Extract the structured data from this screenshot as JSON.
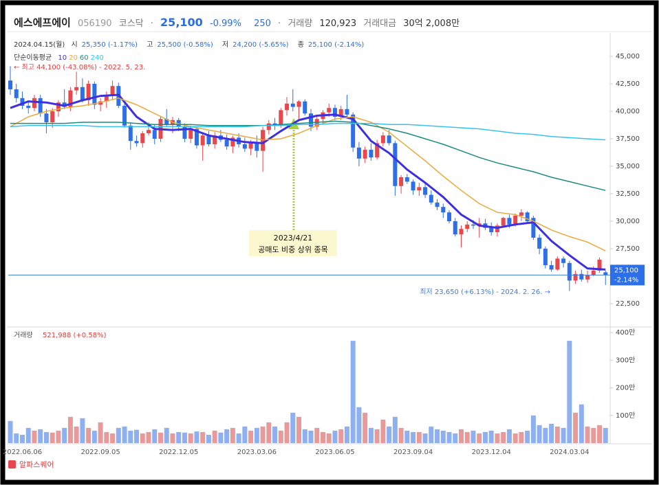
{
  "header": {
    "name": "에스에프에이",
    "code": "056190",
    "market": "코스닥",
    "price": "25,100",
    "change_pct": "-0.99%",
    "change": "250",
    "volume_label": "거래량",
    "volume": "120,923",
    "amount_label": "거래대금",
    "amount": "30억 2,008만"
  },
  "ohlc_info": {
    "date": "2024.04.15(월)",
    "open_label": "시",
    "open": "25,350 (-1.17%)",
    "high_label": "고",
    "high": "25,500 (-0.58%)",
    "low_label": "저",
    "low": "24,200 (-5.65%)",
    "close_label": "종",
    "close": "25,100 (-2.14%)"
  },
  "chart_data": {
    "type": "candlestick",
    "categories": [
      null,
      null,
      "2022.06.06",
      null,
      null,
      null,
      null,
      null,
      null,
      null,
      null,
      null,
      null,
      null,
      null,
      "2022.09.05",
      null,
      null,
      null,
      null,
      null,
      null,
      null,
      null,
      null,
      null,
      null,
      null,
      "2022.12.05",
      null,
      null,
      null,
      null,
      null,
      null,
      null,
      null,
      null,
      null,
      null,
      null,
      "2023.03.06",
      null,
      null,
      null,
      null,
      null,
      null,
      null,
      null,
      null,
      null,
      null,
      null,
      "2023.06.05",
      null,
      null,
      null,
      null,
      null,
      null,
      null,
      null,
      null,
      null,
      null,
      null,
      "2023.09.04",
      null,
      null,
      null,
      null,
      null,
      null,
      null,
      null,
      null,
      null,
      null,
      null,
      "2023.12.04",
      null,
      null,
      null,
      null,
      null,
      null,
      null,
      null,
      null,
      null,
      null,
      null,
      "2024.03.04",
      null,
      null,
      null,
      null,
      null,
      null
    ],
    "open": [
      42800,
      42000,
      41200,
      40500,
      40300,
      41200,
      39800,
      39000,
      40000,
      40800,
      40400,
      41900,
      42200,
      41000,
      42500,
      40600,
      40900,
      41500,
      42300,
      40500,
      38700,
      37300,
      37100,
      38000,
      38300,
      37500,
      39300,
      38800,
      39200,
      38600,
      37500,
      38400,
      36900,
      37800,
      37000,
      37800,
      37400,
      36800,
      37600,
      37000,
      36600,
      37200,
      36400,
      38300,
      38900,
      38700,
      40100,
      40700,
      40400,
      40900,
      39800,
      38600,
      39300,
      39900,
      40300,
      39500,
      40200,
      39700,
      36700,
      35700,
      36500,
      35800,
      37100,
      37800,
      37100,
      33200,
      34000,
      33600,
      32800,
      33100,
      32400,
      31700,
      31300,
      30800,
      30000,
      28800,
      29300,
      29700,
      29600,
      29800,
      29400,
      29000,
      29600,
      30300,
      29700,
      30500,
      30800,
      30300,
      28500,
      27500,
      26000,
      25600,
      26600,
      26200,
      24600,
      25200,
      24700,
      25100,
      25500,
      25350
    ],
    "high": [
      44100,
      42500,
      41800,
      41000,
      41500,
      41500,
      40200,
      40300,
      41000,
      42000,
      42200,
      43600,
      43000,
      42800,
      42700,
      41200,
      41800,
      42800,
      42600,
      40800,
      39000,
      37800,
      38200,
      39000,
      38800,
      39500,
      40200,
      39500,
      39400,
      38900,
      38700,
      38600,
      38100,
      38200,
      38100,
      38300,
      37900,
      37800,
      38000,
      37600,
      37400,
      37800,
      38600,
      39200,
      39400,
      40300,
      41300,
      42000,
      41000,
      41100,
      40200,
      39600,
      40100,
      40700,
      40600,
      40500,
      41500,
      39900,
      37200,
      36800,
      37100,
      37400,
      38100,
      38300,
      37300,
      34200,
      34300,
      33800,
      33500,
      33400,
      32800,
      32000,
      31600,
      31000,
      30300,
      29600,
      30000,
      30100,
      30300,
      30200,
      29900,
      29800,
      30400,
      30600,
      30700,
      31100,
      30900,
      30500,
      28800,
      27700,
      26400,
      26800,
      26800,
      26400,
      25500,
      25600,
      25500,
      25900,
      26700,
      25500
    ],
    "low": [
      41500,
      40800,
      40200,
      39800,
      40000,
      39500,
      38000,
      38500,
      39500,
      40200,
      40000,
      41500,
      40800,
      40500,
      40200,
      40000,
      40300,
      41000,
      40300,
      38500,
      36500,
      36800,
      36700,
      37800,
      37000,
      37200,
      38600,
      38000,
      38200,
      37200,
      37100,
      36600,
      35500,
      36800,
      36600,
      37200,
      36500,
      36200,
      36700,
      36300,
      36000,
      35800,
      34500,
      37900,
      38300,
      38500,
      39600,
      40000,
      39300,
      39600,
      38200,
      38300,
      38900,
      39500,
      39200,
      39200,
      39400,
      36300,
      35000,
      35300,
      35500,
      35600,
      36800,
      36900,
      32300,
      32500,
      33400,
      32400,
      32300,
      32100,
      31500,
      31000,
      30300,
      29800,
      28600,
      27600,
      29000,
      29300,
      28500,
      29200,
      28700,
      28600,
      29400,
      29400,
      29500,
      30000,
      29800,
      28300,
      27000,
      25700,
      25400,
      25500,
      25800,
      23650,
      24300,
      24500,
      24400,
      25000,
      25300,
      24200
    ],
    "close": [
      42000,
      41200,
      40500,
      40300,
      41200,
      39800,
      39000,
      40000,
      40800,
      40400,
      41900,
      42200,
      41000,
      42500,
      40600,
      40900,
      41500,
      42300,
      40500,
      38700,
      37300,
      37100,
      38000,
      38300,
      37500,
      39300,
      38800,
      39200,
      38600,
      37500,
      38400,
      36900,
      37800,
      37000,
      37800,
      37400,
      36800,
      37600,
      37000,
      36600,
      37200,
      36400,
      38300,
      38900,
      38700,
      40100,
      40700,
      40400,
      40900,
      39800,
      38600,
      39300,
      39900,
      40300,
      39500,
      40200,
      39700,
      36700,
      35700,
      36500,
      35800,
      37100,
      37800,
      37100,
      33200,
      34000,
      33600,
      32800,
      33100,
      32400,
      31700,
      31300,
      30800,
      30000,
      28800,
      29300,
      29700,
      29600,
      29800,
      29400,
      29000,
      29600,
      30300,
      29700,
      30500,
      30800,
      30000,
      28500,
      27500,
      26000,
      25600,
      26600,
      26200,
      24600,
      25200,
      24700,
      25100,
      25500,
      26500,
      25100
    ],
    "up_color": "#e8474d",
    "down_color": "#2d6fe8",
    "ylim": [
      20500,
      47000
    ],
    "yticks": [
      {
        "value": 22500,
        "label": "22,500"
      },
      {
        "value": 25000,
        "label": "25,000"
      },
      {
        "value": 27500,
        "label": "27,500"
      },
      {
        "value": 30000,
        "label": "30,000"
      },
      {
        "value": 32500,
        "label": "32,500"
      },
      {
        "value": 35000,
        "label": "35,000"
      },
      {
        "value": 37500,
        "label": "37,500"
      },
      {
        "value": 40000,
        "label": "40,000"
      },
      {
        "value": 42500,
        "label": "42,500"
      },
      {
        "value": 45000,
        "label": "45,000"
      }
    ],
    "ma_label": "단순이동평균",
    "moving_averages": {
      "x": [
        0,
        3,
        6,
        9,
        12,
        15,
        18,
        21,
        24,
        27,
        30,
        33,
        36,
        39,
        42,
        45,
        48,
        51,
        54,
        57,
        60,
        63,
        66,
        69,
        72,
        75,
        78,
        81,
        84,
        87,
        90,
        93,
        96,
        99
      ],
      "series": [
        {
          "name": "10",
          "color": "#3b2fe0",
          "values": [
            40300,
            40900,
            40800,
            40500,
            41000,
            41400,
            41500,
            39500,
            38400,
            38300,
            38400,
            37800,
            37500,
            37200,
            37100,
            38200,
            39200,
            39600,
            39700,
            39300,
            37300,
            36200,
            34700,
            33500,
            32200,
            30600,
            29600,
            29400,
            29700,
            29900,
            28200,
            26900,
            25700,
            25600
          ]
        },
        {
          "name": "20",
          "color": "#e9a93c",
          "values": [
            38600,
            39500,
            40000,
            40300,
            40500,
            40800,
            41200,
            40600,
            39800,
            39000,
            38600,
            38300,
            38000,
            37700,
            37400,
            37500,
            38000,
            38700,
            39300,
            39500,
            39000,
            38100,
            36800,
            35500,
            34100,
            32800,
            31600,
            30800,
            30600,
            30000,
            29200,
            28600,
            28100,
            27300
          ]
        },
        {
          "name": "60",
          "color": "#1a8c7e",
          "values": [
            38900,
            38900,
            38900,
            38900,
            39000,
            39000,
            39000,
            38900,
            38800,
            38800,
            38800,
            38700,
            38700,
            38700,
            38700,
            38800,
            38900,
            39000,
            39100,
            39000,
            38700,
            38400,
            38000,
            37500,
            37000,
            36400,
            35800,
            35300,
            34900,
            34500,
            34000,
            33600,
            33200,
            32800
          ]
        },
        {
          "name": "240",
          "color": "#36c2ee",
          "values": [
            38600,
            38700,
            38700,
            38700,
            38700,
            38600,
            38600,
            38600,
            38600,
            38600,
            38600,
            38600,
            38600,
            38600,
            38700,
            38700,
            38800,
            38800,
            38900,
            38900,
            38900,
            38800,
            38800,
            38700,
            38600,
            38500,
            38400,
            38200,
            38000,
            37900,
            37700,
            37600,
            37500,
            37400
          ]
        }
      ]
    },
    "high_note": "← 최고 44,100 (-43.08%) - 2022. 5. 23.",
    "low_note": "최저 23,650 (+6.13%) - 2024. 2. 26. →",
    "event": {
      "date": "2023/4/21",
      "text": "공매도 비중 상위 종목"
    },
    "last_price": {
      "value": 25100,
      "label": "25,100",
      "change": "-2.14%"
    },
    "volume": {
      "title": "거래량",
      "info": "521,988 (+0.58%)",
      "values": [
        80,
        35,
        30,
        55,
        45,
        50,
        40,
        38,
        45,
        55,
        95,
        60,
        90,
        55,
        45,
        75,
        40,
        35,
        55,
        60,
        45,
        48,
        35,
        40,
        50,
        38,
        55,
        35,
        40,
        38,
        35,
        42,
        40,
        30,
        45,
        38,
        50,
        55,
        35,
        60,
        45,
        55,
        60,
        75,
        60,
        45,
        75,
        110,
        95,
        50,
        45,
        55,
        40,
        35,
        45,
        50,
        60,
        370,
        130,
        110,
        55,
        50,
        85,
        60,
        95,
        55,
        45,
        40,
        40,
        35,
        60,
        50,
        45,
        40,
        35,
        50,
        40,
        45,
        35,
        40,
        45,
        35,
        40,
        50,
        35,
        40,
        45,
        100,
        65,
        55,
        70,
        60,
        55,
        370,
        110,
        140,
        60,
        55,
        65,
        55
      ],
      "up_color": "#e89a9a",
      "down_color": "#8eaff0",
      "ylim": [
        0,
        415
      ],
      "yticks": [
        {
          "value": 100,
          "label": "100만"
        },
        {
          "value": 200,
          "label": "200만"
        },
        {
          "value": 300,
          "label": "300만"
        },
        {
          "value": 400,
          "label": "400만"
        }
      ]
    }
  },
  "footer": {
    "brand": "알파스퀘어"
  }
}
